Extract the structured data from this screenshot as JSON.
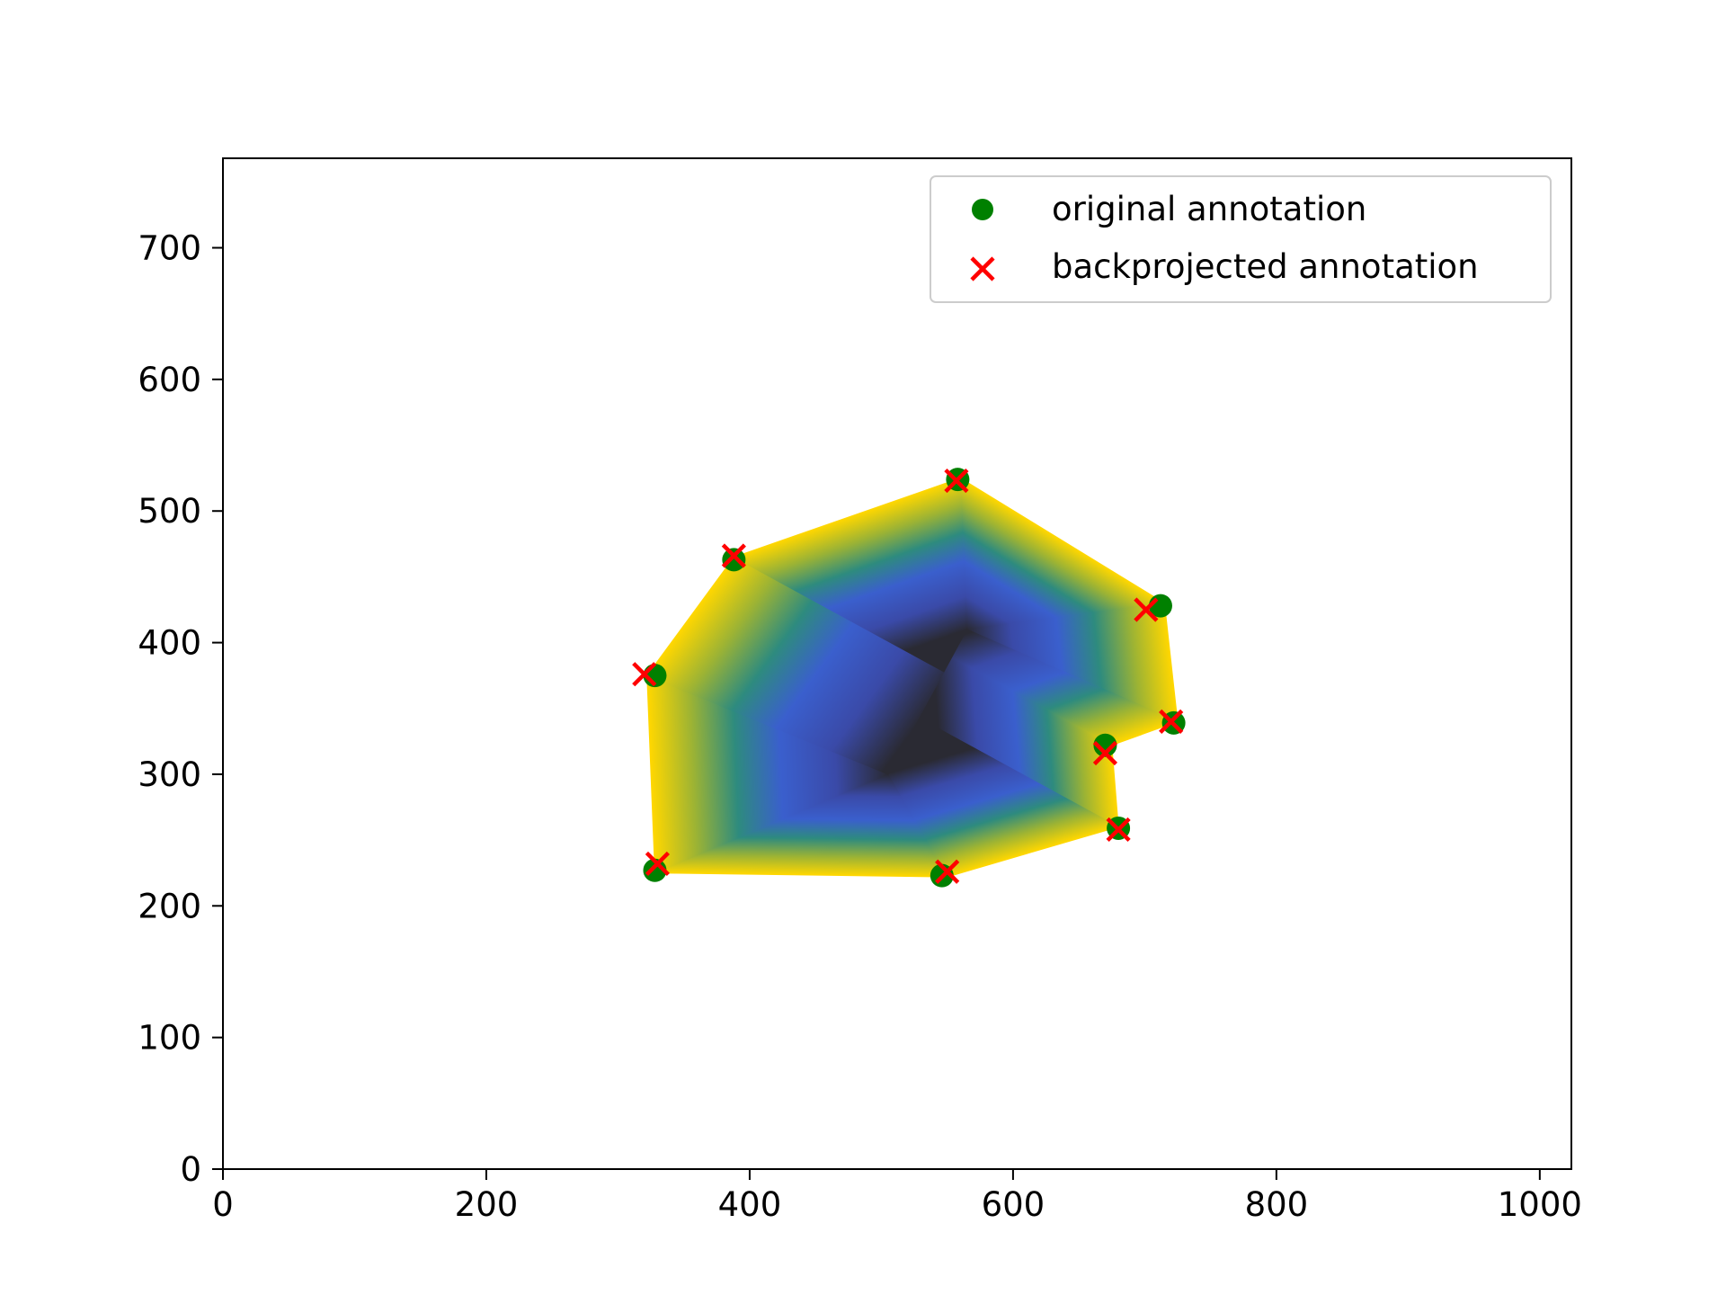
{
  "chart_data": {
    "type": "scatter",
    "title": "",
    "xlabel": "",
    "ylabel": "",
    "xlim": [
      0,
      1024
    ],
    "ylim": [
      0,
      768
    ],
    "x_ticks": [
      0,
      200,
      400,
      600,
      800,
      1000
    ],
    "y_ticks": [
      0,
      100,
      200,
      300,
      400,
      500,
      600,
      700
    ],
    "x_tick_labels": [
      "0",
      "200",
      "400",
      "600",
      "800",
      "1000"
    ],
    "y_tick_labels": [
      "0",
      "100",
      "200",
      "300",
      "400",
      "500",
      "600",
      "700"
    ],
    "grid": false,
    "legend_position": "top-right",
    "polygon": {
      "fill": "distance gradient (dark center to blue to green to yellow edge)",
      "vertices": [
        [
          560,
          525
        ],
        [
          715,
          430
        ],
        [
          725,
          340
        ],
        [
          675,
          322
        ],
        [
          680,
          260
        ],
        [
          550,
          222
        ],
        [
          328,
          225
        ],
        [
          322,
          375
        ],
        [
          388,
          465
        ]
      ],
      "center_ridge": [
        [
          565,
          410
        ],
        [
          505,
          300
        ]
      ]
    },
    "series": [
      {
        "name": "original annotation",
        "marker": "circle",
        "color": "#008000",
        "points": [
          [
            558,
            524
          ],
          [
            388,
            463
          ],
          [
            328,
            375
          ],
          [
            712,
            428
          ],
          [
            722,
            339
          ],
          [
            670,
            322
          ],
          [
            680,
            259
          ],
          [
            546,
            223
          ],
          [
            328,
            227
          ]
        ]
      },
      {
        "name": "backprojected annotation",
        "marker": "x",
        "color": "#ff0000",
        "points": [
          [
            557,
            523
          ],
          [
            388,
            466
          ],
          [
            320,
            376
          ],
          [
            701,
            425
          ],
          [
            720,
            340
          ],
          [
            670,
            316
          ],
          [
            680,
            258
          ],
          [
            550,
            226
          ],
          [
            330,
            232
          ]
        ]
      }
    ]
  }
}
